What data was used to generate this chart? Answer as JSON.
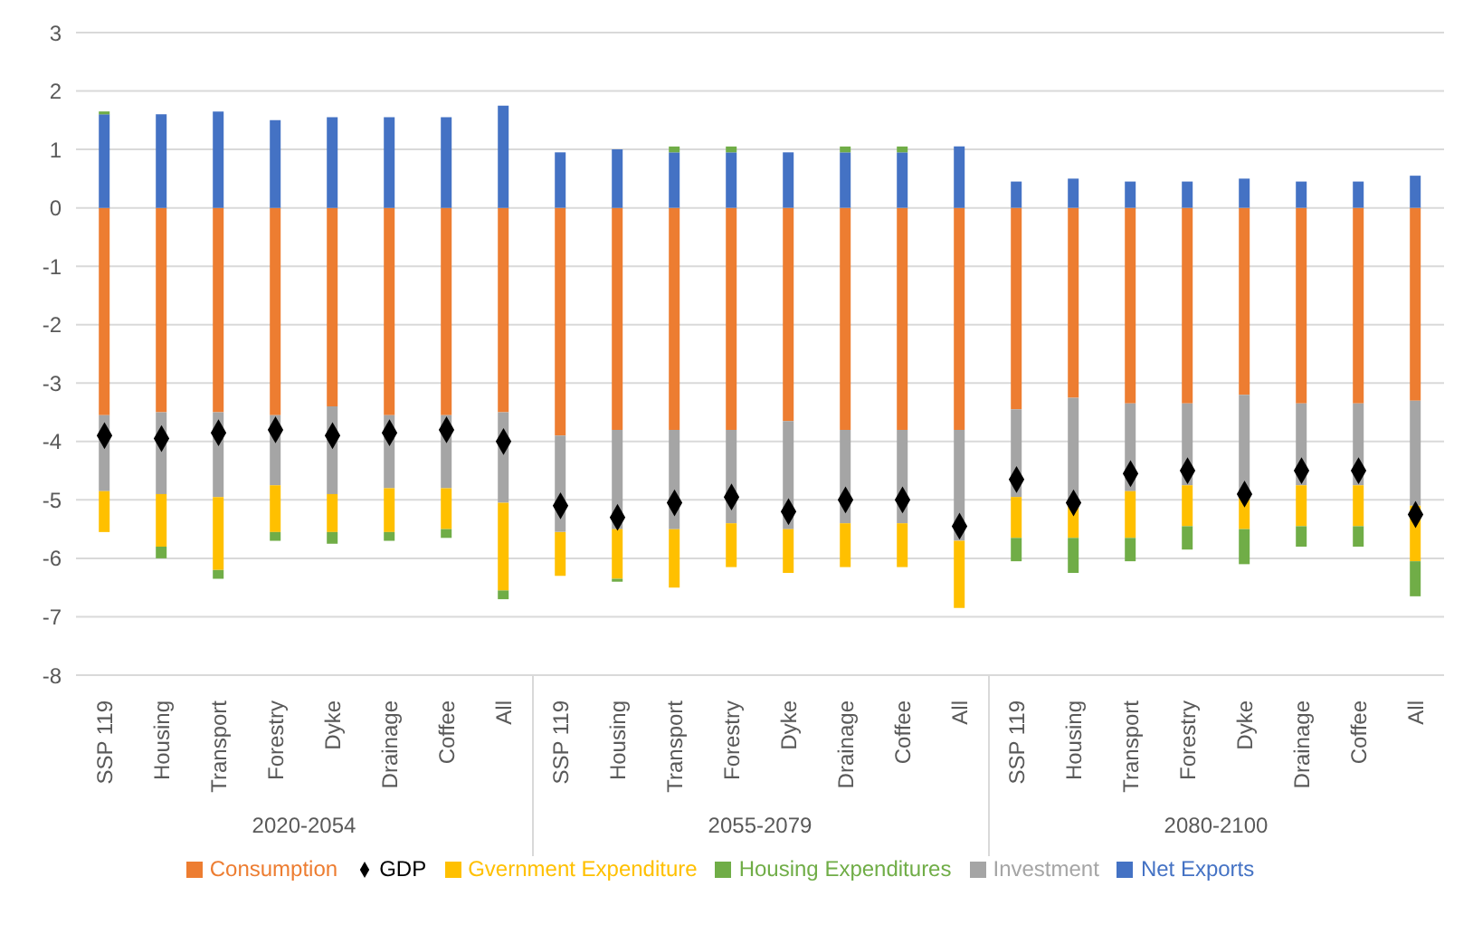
{
  "chart_data": {
    "type": "bar",
    "stacked": true,
    "categories": [
      "SSP 119",
      "Housing",
      "Transport",
      "Forestry",
      "Dyke",
      "Drainage",
      "Coffee",
      "All",
      "SSP 119",
      "Housing",
      "Transport",
      "Forestry",
      "Dyke",
      "Drainage",
      "Coffee",
      "All",
      "SSP 119",
      "Housing",
      "Transport",
      "Forestry",
      "Dyke",
      "Drainage",
      "Coffee",
      "All"
    ],
    "annotations": [
      "2020-2054",
      "2055-2079",
      "2080-2100"
    ],
    "series": [
      {
        "name": "Consumption",
        "color": "#ed7d31",
        "values": [
          -3.55,
          -3.5,
          -3.5,
          -3.55,
          -3.4,
          -3.55,
          -3.55,
          -3.5,
          -3.9,
          -3.8,
          -3.8,
          -3.8,
          -3.65,
          -3.8,
          -3.8,
          -3.8,
          -3.45,
          -3.25,
          -3.35,
          -3.35,
          -3.2,
          -3.35,
          -3.35,
          -3.3
        ]
      },
      {
        "name": "Investment",
        "color": "#a5a5a5",
        "values": [
          -1.3,
          -1.4,
          -1.45,
          -1.2,
          -1.5,
          -1.25,
          -1.25,
          -1.55,
          -1.65,
          -1.7,
          -1.7,
          -1.6,
          -1.85,
          -1.6,
          -1.6,
          -1.9,
          -1.5,
          -1.8,
          -1.5,
          -1.4,
          -1.7,
          -1.4,
          -1.4,
          -1.8
        ]
      },
      {
        "name": "Gvernment Expenditure",
        "color": "#ffc000",
        "values": [
          -0.7,
          -0.9,
          -1.25,
          -0.8,
          -0.65,
          -0.75,
          -0.7,
          -1.5,
          -0.75,
          -0.85,
          -1.0,
          -0.75,
          -0.75,
          -0.75,
          -0.75,
          -1.15,
          -0.7,
          -0.6,
          -0.8,
          -0.7,
          -0.6,
          -0.7,
          -0.7,
          -0.95
        ]
      },
      {
        "name": "Net Exports",
        "color": "#4472c4",
        "values": [
          1.6,
          1.6,
          1.65,
          1.5,
          1.55,
          1.55,
          1.55,
          1.75,
          0.95,
          1.0,
          0.95,
          0.95,
          0.95,
          0.95,
          0.95,
          1.05,
          0.45,
          0.5,
          0.45,
          0.45,
          0.5,
          0.45,
          0.45,
          0.55
        ]
      },
      {
        "name": "Housing Expenditures",
        "color": "#70ad47",
        "values": [
          0.05,
          -0.2,
          -0.15,
          -0.15,
          -0.2,
          -0.15,
          -0.15,
          -0.15,
          null,
          -0.05,
          0.1,
          0.1,
          null,
          0.1,
          0.1,
          null,
          -0.4,
          -0.6,
          -0.4,
          -0.4,
          -0.6,
          -0.35,
          -0.35,
          -0.6
        ]
      },
      {
        "name": "GDP",
        "type": "scatter",
        "marker": "diamond",
        "color": "#000000",
        "values": [
          -3.9,
          -3.95,
          -3.85,
          -3.8,
          -3.9,
          -3.85,
          -3.8,
          -4.0,
          -5.1,
          -5.3,
          -5.05,
          -4.95,
          -5.2,
          -5.0,
          -5.0,
          -5.45,
          -4.65,
          -5.05,
          -4.55,
          -4.5,
          -4.9,
          -4.5,
          -4.5,
          -5.25
        ]
      }
    ],
    "ylim": [
      -8,
      3
    ],
    "yticks": [
      -8,
      -7,
      -6,
      -5,
      -4,
      -3,
      -2,
      -1,
      0,
      1,
      2,
      3
    ],
    "grid": "y",
    "legend": "bottom"
  }
}
